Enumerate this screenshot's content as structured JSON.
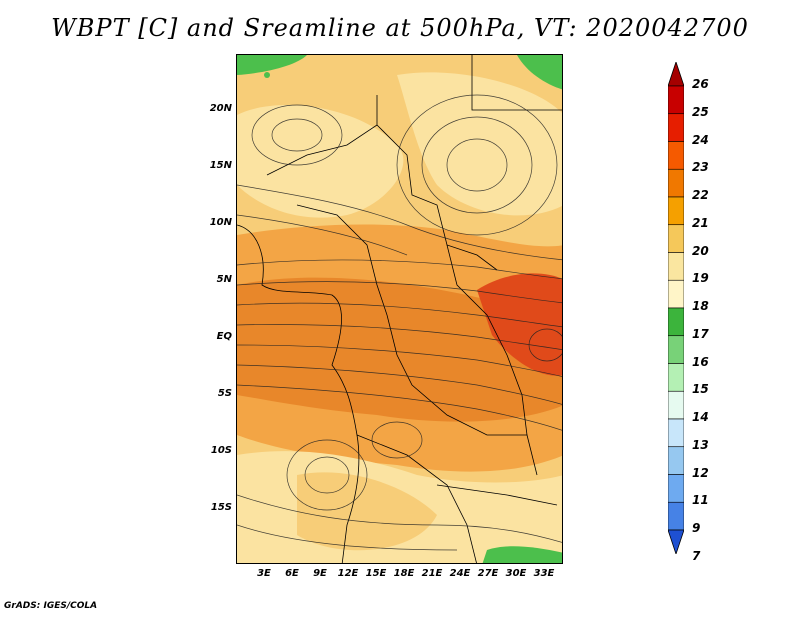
{
  "title": "WBPT [C] and Sreamline at 500hPa, VT: 2020042700",
  "footer": "GrADS: IGES/COLA",
  "lat_labels": [
    "20N",
    "15N",
    "10N",
    "5N",
    "EQ",
    "5S",
    "10S",
    "15S"
  ],
  "lon_labels": [
    "3E",
    "6E",
    "9E",
    "12E",
    "15E",
    "18E",
    "21E",
    "24E",
    "27E",
    "30E",
    "33E"
  ],
  "colorbar": {
    "labels": [
      "26",
      "25",
      "24",
      "23",
      "22",
      "21",
      "20",
      "19",
      "18",
      "17",
      "16",
      "15",
      "14",
      "13",
      "12",
      "11",
      "9",
      "7"
    ],
    "colors": [
      "#a50000",
      "#c80000",
      "#e61e00",
      "#f55a00",
      "#f07800",
      "#f5a000",
      "#f5c85a",
      "#fae6a0",
      "#fff5c8",
      "#3cb43c",
      "#78d278",
      "#b4f0b4",
      "#e6faf0",
      "#c8e6fa",
      "#96c8f0",
      "#6eaaf0",
      "#4682e6",
      "#1e50d2"
    ]
  },
  "map_legend_fills": {
    "orange_dark": "#e8872a",
    "orange": "#f3a545",
    "tan": "#f7cd78",
    "pale": "#fbe3a1",
    "green": "#4cbf4c",
    "red": "#e04a1a"
  }
}
